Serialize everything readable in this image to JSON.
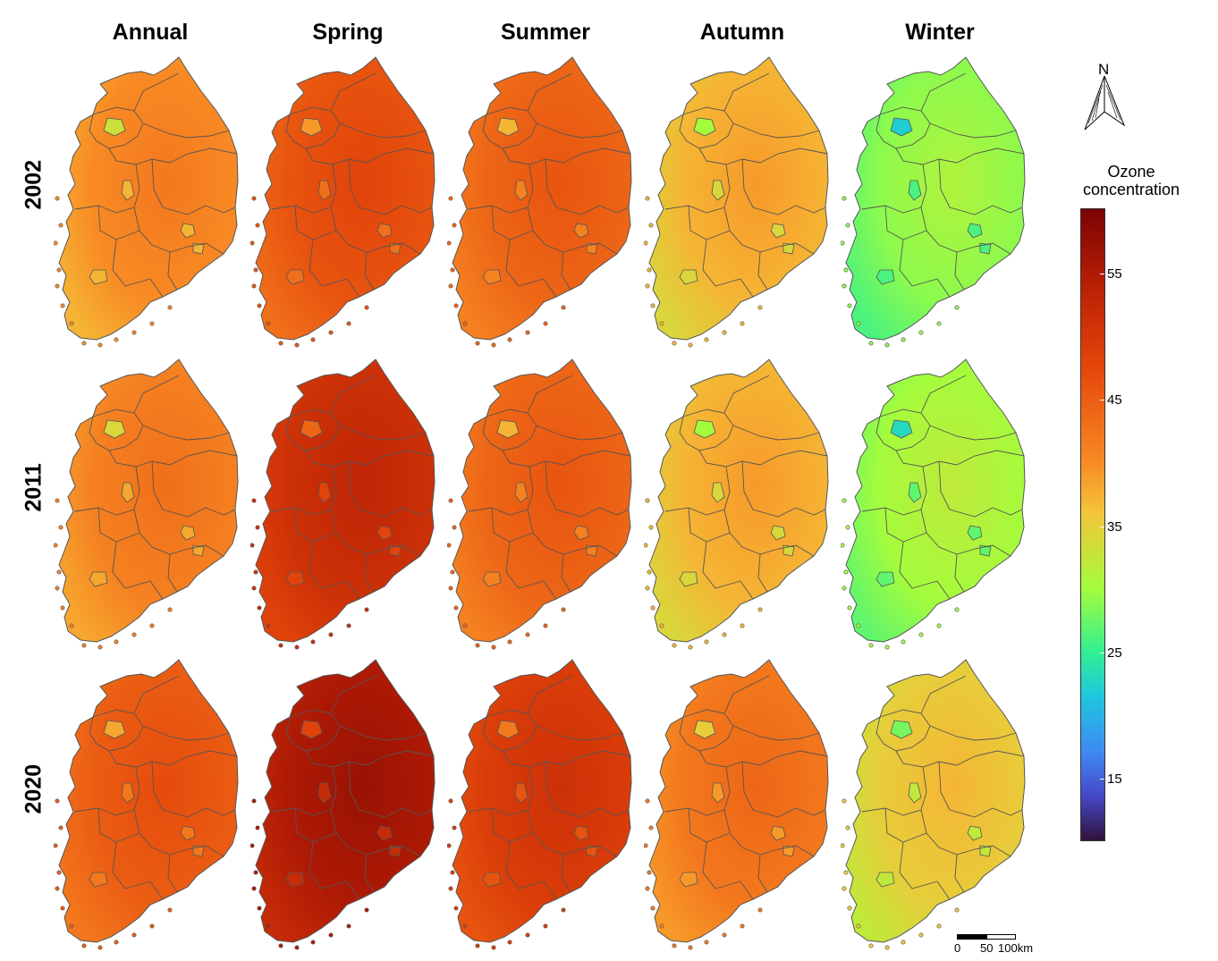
{
  "columns": [
    "Annual",
    "Spring",
    "Summer",
    "Autumn",
    "Winter"
  ],
  "rows": [
    "2002",
    "2011",
    "2020"
  ],
  "legend": {
    "title_line1": "Ozone",
    "title_line2": "concentration",
    "ticks": [
      "55",
      "45",
      "35",
      "25",
      "15"
    ],
    "range": [
      10,
      60
    ],
    "colormap": "turbo"
  },
  "north_label": "N",
  "scale": {
    "labels": [
      "0",
      "50",
      "100km"
    ]
  },
  "panels": [
    [
      {
        "mean": 40
      },
      {
        "mean": 46
      },
      {
        "mean": 44
      },
      {
        "mean": 37
      },
      {
        "mean": 29
      }
    ],
    [
      {
        "mean": 41
      },
      {
        "mean": 51
      },
      {
        "mean": 44
      },
      {
        "mean": 37
      },
      {
        "mean": 30
      }
    ],
    [
      {
        "mean": 45
      },
      {
        "mean": 55
      },
      {
        "mean": 49
      },
      {
        "mean": 42
      },
      {
        "mean": 35
      }
    ]
  ],
  "colors": {
    "boundary": "#555555",
    "background": "#ffffff"
  }
}
